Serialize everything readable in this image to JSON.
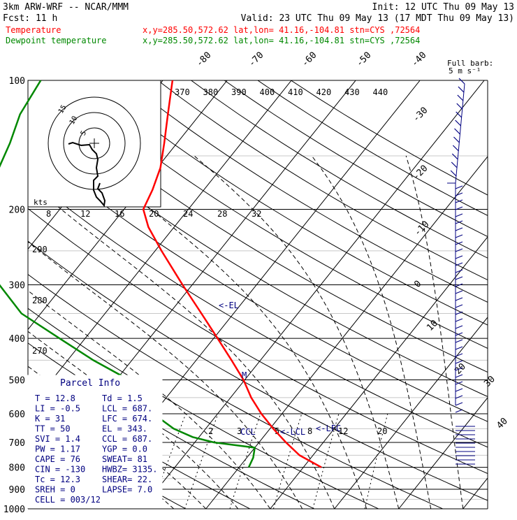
{
  "header": {
    "model": "3km ARW-WRF -- NCAR/MMM",
    "init": "Init: 12 UTC Thu 09 May 13",
    "fcst": "Fcst:    11 h",
    "valid": "Valid: 23 UTC Thu 09 May 13 (17 MDT Thu 09 May 13)",
    "temp_label": "Temperature",
    "temp_loc": "x,y=285.50,572.62   lat,lon= 41.16,-104.81   stn=CYS ,72564",
    "dew_label": "Dewpoint temperature",
    "dew_loc": "x,y=285.50,572.62   lat,lon= 41.16,-104.81   stn=CYS ,72564"
  },
  "colors": {
    "temperature": "#ff0000",
    "dewpoint": "#008800",
    "text_blue": "#000080",
    "gridline": "#000000"
  },
  "chart_data": {
    "type": "line",
    "xlabel": "",
    "ylabel": "",
    "pressure_ticks": [
      100,
      200,
      300,
      400,
      500,
      600,
      700,
      800,
      900,
      1000
    ],
    "pressure_tick_labels": [
      "100",
      "200",
      "300",
      "400",
      "500",
      "600",
      "700",
      "800",
      "900",
      "1000"
    ],
    "isotherm_labels": [
      "-80",
      "-70",
      "-60",
      "-50",
      "-40",
      "-30",
      "-20",
      "-10",
      "0",
      "10",
      "20",
      "30",
      "40"
    ],
    "theta_labels": [
      "370",
      "380",
      "390",
      "400",
      "410",
      "420",
      "430",
      "440"
    ],
    "dry_adiabat_labels": [
      "290",
      "280",
      "270"
    ],
    "mixing_ratio_labels": [
      "8",
      "12",
      "16",
      "20",
      "24",
      "28",
      "32"
    ],
    "low_mixing_ratio_labels": [
      "2",
      "3",
      "5",
      "8",
      "12",
      "20"
    ],
    "hodograph_unit": "kts",
    "hodograph_ring_labels": [
      "5",
      "10",
      "15"
    ],
    "barb_legend": {
      "title": "Full barb:",
      "value": "5 m s⁻¹"
    },
    "annotations": {
      "el": "<-EL",
      "lfc": "<-LFC",
      "lcl": "<-LCL",
      "ccl": "CCL",
      "marker": "M"
    },
    "series": [
      {
        "name": "Temperature",
        "color": "#ff0000",
        "points": [
          {
            "p": 800,
            "t": 12.8
          },
          {
            "p": 750,
            "t": 7.9
          },
          {
            "p": 700,
            "t": 4.2
          },
          {
            "p": 650,
            "t": 0.5
          },
          {
            "p": 600,
            "t": -3.2
          },
          {
            "p": 550,
            "t": -6.8
          },
          {
            "p": 500,
            "t": -10.2
          },
          {
            "p": 450,
            "t": -14.5
          },
          {
            "p": 400,
            "t": -19.4
          },
          {
            "p": 350,
            "t": -25.0
          },
          {
            "p": 300,
            "t": -31.5
          },
          {
            "p": 250,
            "t": -39.0
          },
          {
            "p": 220,
            "t": -44.0
          },
          {
            "p": 200,
            "t": -47.0
          },
          {
            "p": 180,
            "t": -48.0
          },
          {
            "p": 160,
            "t": -49.5
          },
          {
            "p": 140,
            "t": -52.0
          },
          {
            "p": 120,
            "t": -55.0
          },
          {
            "p": 100,
            "t": -58.5
          }
        ]
      },
      {
        "name": "Dewpoint temperature",
        "color": "#008800",
        "points": [
          {
            "p": 800,
            "t": 1.5
          },
          {
            "p": 760,
            "t": 1.0
          },
          {
            "p": 720,
            "t": 0.0
          },
          {
            "p": 700,
            "t": -7.0
          },
          {
            "p": 680,
            "t": -11.0
          },
          {
            "p": 650,
            "t": -15.0
          },
          {
            "p": 600,
            "t": -20.0
          },
          {
            "p": 560,
            "t": -23.0
          },
          {
            "p": 530,
            "t": -24.0
          },
          {
            "p": 500,
            "t": -28.0
          },
          {
            "p": 450,
            "t": -36.0
          },
          {
            "p": 400,
            "t": -44.0
          },
          {
            "p": 350,
            "t": -53.0
          },
          {
            "p": 300,
            "t": -60.0
          },
          {
            "p": 250,
            "t": -66.0
          },
          {
            "p": 200,
            "t": -70.0
          },
          {
            "p": 170,
            "t": -74.0
          },
          {
            "p": 140,
            "t": -76.0
          },
          {
            "p": 120,
            "t": -78.0
          },
          {
            "p": 100,
            "t": -79.0
          }
        ]
      }
    ]
  },
  "parcel_info": {
    "title": "Parcel Info",
    "rows": [
      {
        "left": "T  =   12.8",
        "right": "Td =   1.5"
      },
      {
        "left": "LI =   -0.5",
        "right": "LCL = 687."
      },
      {
        "left": "K  =     31",
        "right": "LFC = 674."
      },
      {
        "left": "TT =     50",
        "right": "EL  = 343."
      },
      {
        "left": "SVI =   1.4",
        "right": "CCL = 687."
      },
      {
        "left": "PW =   1.17",
        "right": "YGP =  0.0"
      },
      {
        "left": "CAPE =   76",
        "right": "SWEAT=  81"
      },
      {
        "left": "CIN =  -130",
        "right": "HWBZ= 3135."
      },
      {
        "left": "Tc =   12.3",
        "right": "SHEAR=  22."
      },
      {
        "left": "SREH =    0",
        "right": "LAPSE= 7.0"
      },
      {
        "left": "CELL = 003/12",
        "right": ""
      }
    ]
  }
}
